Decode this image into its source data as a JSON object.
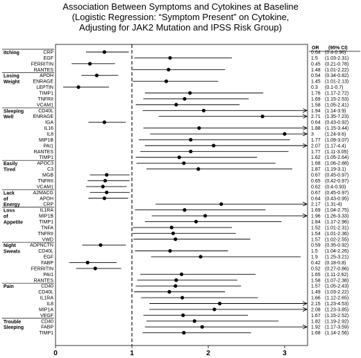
{
  "title_lines": [
    "Association Between Symptoms and Cytokines at Baseline",
    "(Logistic Regression: “Symptom Present” on Cytokine,",
    "Adjusting for JAK2 Mutation and IPSS Risk Group)"
  ],
  "chart_data": {
    "type": "forest",
    "title": "Association Between Symptoms and Cytokines at Baseline (Logistic Regression: “Symptom Present” on Cytokine, Adjusting for JAK2 Mutation and IPSS Risk Group)",
    "xlim": [
      0,
      3.3
    ],
    "xticks": [
      0,
      1,
      2,
      3
    ],
    "reference_line": 1,
    "or_header": "OR",
    "ci_header": "(95% CI)",
    "groups": [
      {
        "name": "Itching",
        "rows": [
          {
            "cytokine": "CRP",
            "or": 0.64,
            "lo": 0.4,
            "hi": 0.96,
            "label": "0.64",
            "ci_label": "(0.4-0.96)"
          },
          {
            "cytokine": "EGF",
            "or": 1.5,
            "lo": 1.03,
            "hi": 2.31,
            "label": "1.5",
            "ci_label": "(1.03-2.31)"
          },
          {
            "cytokine": "FERRITIN",
            "or": 0.45,
            "lo": 0.21,
            "hi": 0.78,
            "label": "0.45",
            "ci_label": "(0.21-0.78)"
          },
          {
            "cytokine": "RANTES",
            "or": 1.48,
            "lo": 1.01,
            "hi": 2.22,
            "label": "1.48",
            "ci_label": "(1.01-2.22)"
          }
        ]
      },
      {
        "name": "Losing Weight",
        "rows": [
          {
            "cytokine": "APOH",
            "or": 0.54,
            "lo": 0.34,
            "hi": 0.82,
            "label": "0.54",
            "ci_label": "(0.34-0.82)"
          },
          {
            "cytokine": "ENRAGE",
            "or": 1.45,
            "lo": 1.01,
            "hi": 2.13,
            "label": "1.45",
            "ci_label": "(1.01-2.13)"
          },
          {
            "cytokine": "LEPTIN",
            "or": 0.3,
            "lo": 0.1,
            "hi": 0.7,
            "label": "0.3",
            "ci_label": "(0.1-0.7)"
          },
          {
            "cytokine": "TIMP1",
            "or": 1.76,
            "lo": 1.17,
            "hi": 2.72,
            "label": "1.76",
            "ci_label": "(1.17-2.72)"
          },
          {
            "cytokine": "TNFRII",
            "or": 1.69,
            "lo": 1.15,
            "hi": 2.53,
            "label": "1.69",
            "ci_label": "(1.15-2.53)"
          },
          {
            "cytokine": "VCAM1",
            "or": 1.58,
            "lo": 1.05,
            "hi": 2.41,
            "label": "1.58",
            "ci_label": "(1.05-2.41)"
          }
        ]
      },
      {
        "name": "Sleeping Well",
        "rows": [
          {
            "cytokine": "CD40L",
            "or": 1.94,
            "lo": 1.14,
            "hi": 3.9,
            "label": "1.94",
            "ci_label": "(1.14-3.9)",
            "arrow": true
          },
          {
            "cytokine": "ENRAGE",
            "or": 2.71,
            "lo": 1.35,
            "hi": 7.23,
            "label": "2.71",
            "ci_label": "(1.35-7.23)",
            "arrow": true
          },
          {
            "cytokine": "IGA",
            "or": 0.64,
            "lo": 0.43,
            "hi": 0.92,
            "label": "0.64",
            "ci_label": "(0.43-0.92)"
          },
          {
            "cytokine": "IL16",
            "or": 1.88,
            "lo": 1.15,
            "hi": 3.44,
            "label": "1.88",
            "ci_label": "(1.15-3.44)",
            "arrow": true
          },
          {
            "cytokine": "IL8",
            "or": 3,
            "lo": 1.24,
            "hi": 9.6,
            "label": "3",
            "ci_label": "(1.24-9.6)",
            "arrow": true
          },
          {
            "cytokine": "MIP1B",
            "or": 1.77,
            "lo": 1.09,
            "hi": 3.07,
            "label": "1.77",
            "ci_label": "(1.09-3.07)"
          },
          {
            "cytokine": "PAI1",
            "or": 2.07,
            "lo": 1.17,
            "hi": 4.4,
            "label": "2.07",
            "ci_label": "(1.17-4.4)",
            "arrow": true
          },
          {
            "cytokine": "RANTES",
            "or": 1.77,
            "lo": 1.11,
            "hi": 3.05,
            "label": "1.77",
            "ci_label": "(1.11-3.05)"
          },
          {
            "cytokine": "TIMP1",
            "or": 1.62,
            "lo": 1.05,
            "hi": 2.64,
            "label": "1.62",
            "ci_label": "(1.05-2.64)"
          }
        ]
      },
      {
        "name": "Easily Tired",
        "rows": [
          {
            "cytokine": "APOC3",
            "or": 1.68,
            "lo": 1.06,
            "hi": 2.88,
            "label": "1.68",
            "ci_label": "(1.06-2.88)"
          },
          {
            "cytokine": "C3",
            "or": 1.87,
            "lo": 1.19,
            "hi": 3.1,
            "label": "1.87",
            "ci_label": "(1.19-3.1)"
          },
          {
            "cytokine": "MGB",
            "or": 0.67,
            "lo": 0.45,
            "hi": 0.97,
            "label": "0.67",
            "ci_label": "(0.45-0.97)"
          },
          {
            "cytokine": "TNFRII",
            "or": 0.65,
            "lo": 0.42,
            "hi": 0.97,
            "label": "0.65",
            "ci_label": "(0.42-0.97)"
          },
          {
            "cytokine": "VCAM1",
            "or": 0.62,
            "lo": 0.4,
            "hi": 0.93,
            "label": "0.62",
            "ci_label": "(0.4-0.93)"
          }
        ]
      },
      {
        "name": "Lack of Energy",
        "rows": [
          {
            "cytokine": "A2MACG",
            "or": 0.67,
            "lo": 0.45,
            "hi": 0.97,
            "label": "0.67",
            "ci_label": "(0.45-0.97)"
          },
          {
            "cytokine": "APOH",
            "or": 0.64,
            "lo": 0.43,
            "hi": 0.95,
            "label": "0.64",
            "ci_label": "(0.43-0.95)"
          },
          {
            "cytokine": "CRP",
            "or": 2.17,
            "lo": 1.31,
            "hi": 4,
            "label": "2.17",
            "ci_label": "(1.31-4)",
            "arrow": true
          }
        ]
      },
      {
        "name": "Loss of Appetite",
        "rows": [
          {
            "cytokine": "IL1RA",
            "or": 1.69,
            "lo": 1.04,
            "hi": 2.75,
            "label": "1.69",
            "ci_label": "(1.04-2.75)"
          },
          {
            "cytokine": "MIP1B",
            "or": 1.96,
            "lo": 1.26,
            "hi": 3.33,
            "label": "1.96",
            "ci_label": "(1.26-3.33)"
          },
          {
            "cytokine": "TIMP1",
            "or": 1.84,
            "lo": 1.17,
            "hi": 2.96,
            "label": "1.84",
            "ci_label": "(1.17-2.96)"
          },
          {
            "cytokine": "TNFA",
            "or": 1.52,
            "lo": 1.01,
            "hi": 2.31,
            "label": "1.52",
            "ci_label": "(1.01-2.31)"
          },
          {
            "cytokine": "TNFRII",
            "or": 1.54,
            "lo": 1.01,
            "hi": 2.36,
            "label": "1.54",
            "ci_label": "(1.01-2.36)"
          },
          {
            "cytokine": "VWD",
            "or": 1.57,
            "lo": 1.02,
            "hi": 2.55,
            "label": "1.57",
            "ci_label": "(1.02-2.55)"
          }
        ]
      },
      {
        "name": "Night Sweats",
        "rows": [
          {
            "cytokine": "ADPNCTN",
            "or": 0.59,
            "lo": 0.35,
            "hi": 0.92,
            "label": "0.59",
            "ci_label": "(0.35-0.92)"
          },
          {
            "cytokine": "CD40L",
            "or": 1.5,
            "lo": 1.04,
            "hi": 2.26,
            "label": "1.5",
            "ci_label": "(1.04-2.26)"
          },
          {
            "cytokine": "EGF",
            "or": 1.9,
            "lo": 1.25,
            "hi": 3.21,
            "label": "1.9",
            "ci_label": "(1.25-3.21)"
          },
          {
            "cytokine": "FABP",
            "or": 0.42,
            "lo": 0.18,
            "hi": 0.8,
            "label": "0.42",
            "ci_label": "(0.18-0.8)"
          },
          {
            "cytokine": "FERRITIN",
            "or": 0.52,
            "lo": 0.27,
            "hi": 0.86,
            "label": "0.52",
            "ci_label": "(0.27-0.86)"
          },
          {
            "cytokine": "PAI1",
            "or": 1.65,
            "lo": 1.11,
            "hi": 2.62,
            "label": "1.65",
            "ci_label": "(1.11-2.62)"
          },
          {
            "cytokine": "RANTES",
            "or": 1.58,
            "lo": 1.07,
            "hi": 2.38,
            "label": "1.58",
            "ci_label": "(1.07-2.38)"
          }
        ]
      },
      {
        "name": "Pain",
        "rows": [
          {
            "cytokine": "CD40",
            "or": 1.57,
            "lo": 1.05,
            "hi": 2.43,
            "label": "1.57",
            "ci_label": "(1.05-2.43)"
          },
          {
            "cytokine": "CD40L",
            "or": 1.49,
            "lo": 1.03,
            "hi": 2.22,
            "label": "1.49",
            "ci_label": "(1.03-2.22)"
          },
          {
            "cytokine": "IL1RA",
            "or": 1.66,
            "lo": 1.12,
            "hi": 2.65,
            "label": "1.66",
            "ci_label": "(1.12-2.65)"
          },
          {
            "cytokine": "IL8",
            "or": 2.15,
            "lo": 1.23,
            "hi": 4.53,
            "label": "2.15",
            "ci_label": "(1.23-4.53)",
            "arrow": true
          },
          {
            "cytokine": "MIP1A",
            "or": 2.08,
            "lo": 1.23,
            "hi": 3.85,
            "label": "2.08",
            "ci_label": "(1.23-3.85)",
            "arrow": true
          },
          {
            "cytokine": "VEGF",
            "or": 1.67,
            "lo": 1.15,
            "hi": 2.52,
            "label": "1.67",
            "ci_label": "(1.15-2.52)"
          }
        ]
      },
      {
        "name": "Trouble Sleeping",
        "rows": [
          {
            "cytokine": "CD40",
            "or": 1.82,
            "lo": 1.19,
            "hi": 2.92,
            "label": "1.82",
            "ci_label": "(1.19-2.92)"
          },
          {
            "cytokine": "FABP",
            "or": 1.92,
            "lo": 1.17,
            "hi": 3.59,
            "label": "1.92",
            "ci_label": "(1.17-3.59)",
            "arrow": true
          },
          {
            "cytokine": "TIMP1",
            "or": 1.68,
            "lo": 1.14,
            "hi": 2.56,
            "label": "1.68",
            "ci_label": "(1.14-2.56)"
          }
        ]
      }
    ]
  }
}
